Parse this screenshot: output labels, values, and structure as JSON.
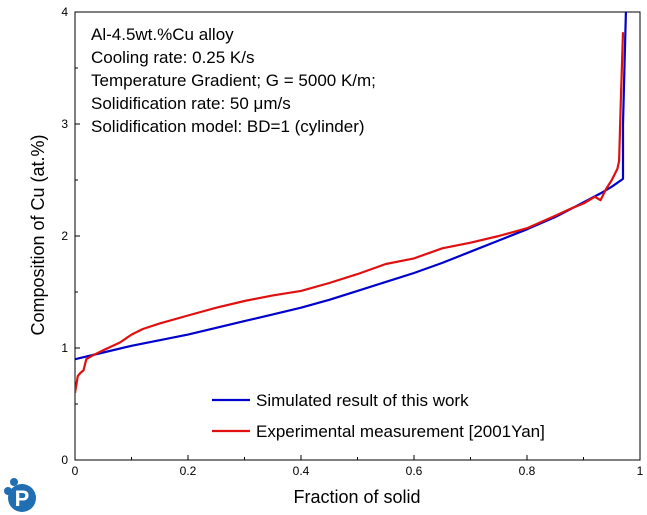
{
  "chart_data": {
    "type": "line",
    "xlabel": "Fraction of solid",
    "ylabel": "Composition of Cu (at.%)",
    "xlim": [
      0,
      1
    ],
    "ylim": [
      0,
      4
    ],
    "xticks": [
      0,
      0.2,
      0.4,
      0.6,
      0.8,
      1
    ],
    "yticks": [
      0,
      1,
      2,
      3,
      4
    ],
    "xtick_labels": [
      "0",
      "0.2",
      "0.4",
      "0.6",
      "0.8",
      "1"
    ],
    "ytick_labels": [
      "0",
      "1",
      "2",
      "3",
      "4"
    ],
    "grid": false,
    "legend_position": "bottom-right",
    "annotations": [
      "Al-4.5wt.%Cu alloy",
      "Cooling rate: 0.25 K/s",
      "Temperature Gradient; G = 5000 K/m;",
      "Solidification rate: 50 μm/s",
      "Solidification model: BD=1 (cylinder)"
    ],
    "series": [
      {
        "name": "Simulated result of this work",
        "color": "#0000cc",
        "x": [
          0,
          0.05,
          0.1,
          0.15,
          0.2,
          0.25,
          0.3,
          0.35,
          0.4,
          0.45,
          0.5,
          0.55,
          0.6,
          0.65,
          0.7,
          0.75,
          0.8,
          0.85,
          0.9,
          0.93,
          0.95,
          0.97,
          0.97,
          0.975
        ],
        "y": [
          0.9,
          0.96,
          1.02,
          1.07,
          1.12,
          1.18,
          1.24,
          1.3,
          1.36,
          1.43,
          1.51,
          1.59,
          1.67,
          1.76,
          1.86,
          1.96,
          2.06,
          2.17,
          2.3,
          2.38,
          2.44,
          2.51,
          3.0,
          4.0
        ]
      },
      {
        "name": "Experimental measurement [2001Yan]",
        "color": "#e01010",
        "x": [
          0,
          0.005,
          0.01,
          0.015,
          0.02,
          0.03,
          0.05,
          0.08,
          0.1,
          0.12,
          0.15,
          0.2,
          0.25,
          0.3,
          0.35,
          0.4,
          0.45,
          0.5,
          0.55,
          0.6,
          0.65,
          0.7,
          0.75,
          0.8,
          0.85,
          0.88,
          0.9,
          0.92,
          0.93,
          0.94,
          0.95,
          0.96,
          0.963,
          0.966,
          0.97
        ],
        "y": [
          0.6,
          0.75,
          0.78,
          0.8,
          0.9,
          0.93,
          0.98,
          1.05,
          1.12,
          1.17,
          1.22,
          1.29,
          1.36,
          1.42,
          1.47,
          1.51,
          1.58,
          1.66,
          1.75,
          1.8,
          1.89,
          1.94,
          2.0,
          2.07,
          2.18,
          2.25,
          2.29,
          2.35,
          2.32,
          2.42,
          2.5,
          2.6,
          2.67,
          3.2,
          3.82
        ]
      }
    ]
  },
  "logo": {
    "letter": "P",
    "color": "#1f6fb2"
  }
}
